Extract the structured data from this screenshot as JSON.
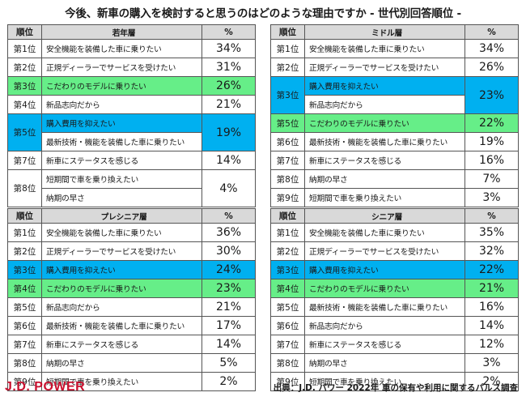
{
  "title": "今後、新車の購入を検討すると思うのはどのような理由ですか - 世代別回答順位 -",
  "colors": {
    "blue": "#00b0f0",
    "green": "#66ee88",
    "header": "#d9d9d9",
    "logo": "#c8102e"
  },
  "headers": {
    "rank": "順位",
    "pct": "%"
  },
  "panels": [
    {
      "name": "若年層",
      "rows": [
        {
          "rank": "第1位",
          "items": [
            "安全機能を装備した車に乗りたい"
          ],
          "pct": "34%"
        },
        {
          "rank": "第2位",
          "items": [
            "正規ディーラーでサービスを受けたい"
          ],
          "pct": "31%"
        },
        {
          "rank": "第3位",
          "items": [
            "こだわりのモデルに乗りたい"
          ],
          "pct": "26%",
          "color": "green"
        },
        {
          "rank": "第4位",
          "items": [
            "新品志向だから"
          ],
          "pct": "21%"
        },
        {
          "rank": "第5位",
          "items": [
            "購入費用を抑えたい",
            "最新技術・機能を装備した車に乗りたい"
          ],
          "pct": "19%",
          "color": "blue",
          "colorItems": [
            0
          ]
        },
        {
          "rank": "第7位",
          "items": [
            "新車にステータスを感じる"
          ],
          "pct": "14%"
        },
        {
          "rank": "第8位",
          "items": [
            "短期間で車を乗り換えたい",
            "納期の早さ"
          ],
          "pct": "4%"
        }
      ]
    },
    {
      "name": "ミドル層",
      "rows": [
        {
          "rank": "第1位",
          "items": [
            "安全機能を装備した車に乗りたい"
          ],
          "pct": "34%"
        },
        {
          "rank": "第2位",
          "items": [
            "正規ディーラーでサービスを受けたい"
          ],
          "pct": "26%"
        },
        {
          "rank": "第3位",
          "items": [
            "購入費用を抑えたい",
            "新品志向だから"
          ],
          "pct": "23%",
          "color": "blue",
          "colorItems": [
            0
          ]
        },
        {
          "rank": "第5位",
          "items": [
            "こだわりのモデルに乗りたい"
          ],
          "pct": "22%",
          "color": "green"
        },
        {
          "rank": "第6位",
          "items": [
            "最新技術・機能を装備した車に乗りたい"
          ],
          "pct": "19%"
        },
        {
          "rank": "第7位",
          "items": [
            "新車にステータスを感じる"
          ],
          "pct": "16%"
        },
        {
          "rank": "第8位",
          "items": [
            "納期の早さ"
          ],
          "pct": "7%"
        },
        {
          "rank": "第9位",
          "items": [
            "短期間で車を乗り換えたい"
          ],
          "pct": "3%"
        }
      ]
    },
    {
      "name": "プレシニア層",
      "rows": [
        {
          "rank": "第1位",
          "items": [
            "安全機能を装備した車に乗りたい"
          ],
          "pct": "36%"
        },
        {
          "rank": "第2位",
          "items": [
            "正規ディーラーでサービスを受けたい"
          ],
          "pct": "30%"
        },
        {
          "rank": "第3位",
          "items": [
            "購入費用を抑えたい"
          ],
          "pct": "24%",
          "color": "blue"
        },
        {
          "rank": "第4位",
          "items": [
            "こだわりのモデルに乗りたい"
          ],
          "pct": "23%",
          "color": "green"
        },
        {
          "rank": "第5位",
          "items": [
            "新品志向だから"
          ],
          "pct": "21%"
        },
        {
          "rank": "第6位",
          "items": [
            "最新技術・機能を装備した車に乗りたい"
          ],
          "pct": "17%"
        },
        {
          "rank": "第7位",
          "items": [
            "新車にステータスを感じる"
          ],
          "pct": "14%"
        },
        {
          "rank": "第8位",
          "items": [
            "納期の早さ"
          ],
          "pct": "5%"
        },
        {
          "rank": "第9位",
          "items": [
            "短期間で車を乗り換えたい"
          ],
          "pct": "2%"
        }
      ]
    },
    {
      "name": "シニア層",
      "rows": [
        {
          "rank": "第1位",
          "items": [
            "安全機能を装備した車に乗りたい"
          ],
          "pct": "35%"
        },
        {
          "rank": "第2位",
          "items": [
            "正規ディーラーでサービスを受けたい"
          ],
          "pct": "32%"
        },
        {
          "rank": "第3位",
          "items": [
            "購入費用を抑えたい"
          ],
          "pct": "22%",
          "color": "blue"
        },
        {
          "rank": "第4位",
          "items": [
            "こだわりのモデルに乗りたい"
          ],
          "pct": "21%",
          "color": "green"
        },
        {
          "rank": "第5位",
          "items": [
            "最新技術・機能を装備した車に乗りたい"
          ],
          "pct": "16%"
        },
        {
          "rank": "第6位",
          "items": [
            "新品志向だから"
          ],
          "pct": "14%"
        },
        {
          "rank": "第7位",
          "items": [
            "新車にステータスを感じる"
          ],
          "pct": "12%"
        },
        {
          "rank": "第8位",
          "items": [
            "納期の早さ"
          ],
          "pct": "3%"
        },
        {
          "rank": "第9位",
          "items": [
            "短期間で車を乗り換えたい"
          ],
          "pct": "2%"
        }
      ]
    }
  ],
  "footer": {
    "logo": "J.D. POWER",
    "source": "出典：J.D. パワー 2022年 車の保有や利用に関するパルス調査"
  }
}
